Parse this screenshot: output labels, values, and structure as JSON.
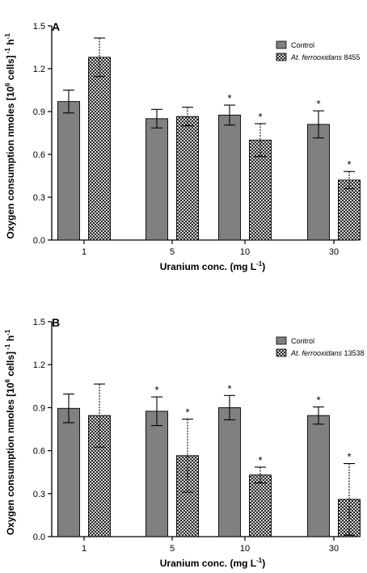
{
  "chart_data": [
    {
      "type": "bar",
      "panel_label": "A",
      "categories": [
        "1",
        "5",
        "10",
        "30"
      ],
      "xlabel": "Uranium conc. (mg L",
      "xlabel_sup": "-1",
      "xlabel_end": ")",
      "ylabel": "Oxygen consumption nmoles [10",
      "ylabel_sup": "6",
      "ylabel_mid": " cells]",
      "ylabel_sup2": " -1",
      "ylabel_end": " h",
      "ylabel_sup3": "-1",
      "ylim": [
        0,
        1.5
      ],
      "yticks": [
        "0.0",
        "0.3",
        "0.6",
        "0.9",
        "1.2",
        "1.5"
      ],
      "legend_position": "top-right",
      "series": [
        {
          "name": "Control",
          "name_italic": "",
          "fill": "solid-gray",
          "values": [
            0.97,
            0.85,
            0.875,
            0.81
          ],
          "errors": [
            0.08,
            0.065,
            0.07,
            0.095
          ],
          "significant": [
            false,
            false,
            true,
            true
          ]
        },
        {
          "name": "8455",
          "name_italic": "At. ferrooxidans",
          "fill": "crosshatch",
          "values": [
            1.28,
            0.865,
            0.7,
            0.42
          ],
          "errors": [
            0.135,
            0.065,
            0.115,
            0.06
          ],
          "significant": [
            false,
            false,
            true,
            true
          ]
        }
      ]
    },
    {
      "type": "bar",
      "panel_label": "B",
      "categories": [
        "1",
        "5",
        "10",
        "30"
      ],
      "xlabel": "Uranium conc. (mg L",
      "xlabel_sup": "-1",
      "xlabel_end": ")",
      "ylabel": "Oxygen consumption nmoles [10",
      "ylabel_sup": "6",
      "ylabel_mid": " cells]",
      "ylabel_sup2": " -1",
      "ylabel_end": " h",
      "ylabel_sup3": "-1",
      "ylim": [
        0,
        1.5
      ],
      "yticks": [
        "0.0",
        "0.3",
        "0.6",
        "0.9",
        "1.2",
        "1.5"
      ],
      "legend_position": "top-right",
      "series": [
        {
          "name": "Control",
          "name_italic": "",
          "fill": "solid-gray",
          "values": [
            0.895,
            0.875,
            0.9,
            0.845
          ],
          "errors": [
            0.1,
            0.1,
            0.085,
            0.06
          ],
          "significant": [
            false,
            true,
            true,
            true
          ]
        },
        {
          "name": "13538",
          "name_italic": "At. ferrooxidans",
          "fill": "crosshatch",
          "values": [
            0.845,
            0.565,
            0.43,
            0.26
          ],
          "errors": [
            0.22,
            0.255,
            0.055,
            0.25
          ],
          "significant": [
            false,
            true,
            true,
            true
          ]
        }
      ]
    }
  ],
  "significance_marker": "*",
  "colors": {
    "control_fill": "#808080",
    "hatch_background": "#ffffff",
    "hatch_line": "#000000",
    "axis": "#000000"
  }
}
